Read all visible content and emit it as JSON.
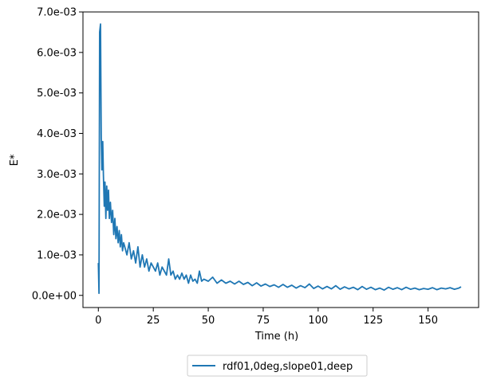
{
  "chart_data": {
    "type": "line",
    "xlabel": "Time (h)",
    "ylabel": "E*",
    "xlim": [
      -7,
      173
    ],
    "ylim": [
      -0.0003,
      0.007
    ],
    "x_ticks": [
      0,
      25,
      50,
      75,
      100,
      125,
      150
    ],
    "x_tick_labels": [
      "0",
      "25",
      "50",
      "75",
      "100",
      "125",
      "150"
    ],
    "y_ticks": [
      0,
      0.001,
      0.002,
      0.003,
      0.004,
      0.005,
      0.006,
      0.007
    ],
    "y_tick_labels": [
      "0.0e+00",
      "1.0e-03",
      "2.0e-03",
      "3.0e-03",
      "4.0e-03",
      "5.0e-03",
      "6.0e-03",
      "7.0e-03"
    ],
    "grid": false,
    "legend": {
      "placement": "below-center",
      "entries": [
        "rdf01,0deg,slope01,deep"
      ]
    },
    "series": [
      {
        "name": "rdf01,0deg,slope01,deep",
        "color": "#1f77b4",
        "x": [
          0,
          0.3,
          0.6,
          1.0,
          1.3,
          1.6,
          2.0,
          2.3,
          2.7,
          3.0,
          3.4,
          3.8,
          4.2,
          4.6,
          5.0,
          5.5,
          6.0,
          6.5,
          7.0,
          7.5,
          8.0,
          8.5,
          9.0,
          9.5,
          10.0,
          10.5,
          11.0,
          11.5,
          12.0,
          13.0,
          14.0,
          15.0,
          16.0,
          17.0,
          18.0,
          19.0,
          20.0,
          21.0,
          22.0,
          23.0,
          24.0,
          25.0,
          26.0,
          27.0,
          28.0,
          29.0,
          30.0,
          31.0,
          32.0,
          33.0,
          34.0,
          35.0,
          36.0,
          37.0,
          38.0,
          39.0,
          40.0,
          41.0,
          42.0,
          43.0,
          44.0,
          45.0,
          46.0,
          47.0,
          48.0,
          50.0,
          52.0,
          54.0,
          56.0,
          58.0,
          60.0,
          62.0,
          64.0,
          66.0,
          68.0,
          70.0,
          72.0,
          74.0,
          76.0,
          78.0,
          80.0,
          82.0,
          84.0,
          86.0,
          88.0,
          90.0,
          92.0,
          94.0,
          96.0,
          98.0,
          100.0,
          102.0,
          104.0,
          106.0,
          108.0,
          110.0,
          112.0,
          114.0,
          116.0,
          118.0,
          120.0,
          122.0,
          124.0,
          126.0,
          128.0,
          130.0,
          132.0,
          134.0,
          136.0,
          138.0,
          140.0,
          142.0,
          144.0,
          146.0,
          148.0,
          150.0,
          152.0,
          154.0,
          156.0,
          158.0,
          160.0,
          162.0,
          164.0,
          165.0
        ],
        "y": [
          0.0008,
          5e-05,
          0.0065,
          0.0067,
          0.0039,
          0.0031,
          0.0038,
          0.003,
          0.0022,
          0.0028,
          0.0019,
          0.0027,
          0.0021,
          0.0026,
          0.0019,
          0.0023,
          0.0018,
          0.0021,
          0.0015,
          0.0019,
          0.0014,
          0.0017,
          0.0013,
          0.0016,
          0.0012,
          0.0015,
          0.0011,
          0.0013,
          0.0012,
          0.001,
          0.0013,
          0.0009,
          0.0011,
          0.0008,
          0.0012,
          0.0007,
          0.001,
          0.0007,
          0.0009,
          0.0006,
          0.0008,
          0.0007,
          0.0006,
          0.0008,
          0.0005,
          0.0007,
          0.0006,
          0.0005,
          0.0009,
          0.0005,
          0.0006,
          0.0004,
          0.0005,
          0.0004,
          0.00055,
          0.0004,
          0.0005,
          0.0003,
          0.0005,
          0.00035,
          0.0004,
          0.0003,
          0.0006,
          0.00035,
          0.0004,
          0.00035,
          0.00045,
          0.0003,
          0.00038,
          0.0003,
          0.00035,
          0.00028,
          0.00035,
          0.00027,
          0.00032,
          0.00024,
          0.00031,
          0.00023,
          0.00028,
          0.00022,
          0.00026,
          0.0002,
          0.00027,
          0.0002,
          0.00025,
          0.00018,
          0.00024,
          0.00019,
          0.00028,
          0.00017,
          0.00023,
          0.00016,
          0.00022,
          0.00016,
          0.00024,
          0.00015,
          0.00021,
          0.00016,
          0.0002,
          0.00014,
          0.00022,
          0.00015,
          0.0002,
          0.00014,
          0.00018,
          0.00013,
          0.0002,
          0.00015,
          0.00019,
          0.00014,
          0.0002,
          0.00015,
          0.00018,
          0.00014,
          0.00017,
          0.00015,
          0.00019,
          0.00014,
          0.00018,
          0.00016,
          0.00019,
          0.00015,
          0.00018,
          0.00021
        ]
      }
    ]
  }
}
